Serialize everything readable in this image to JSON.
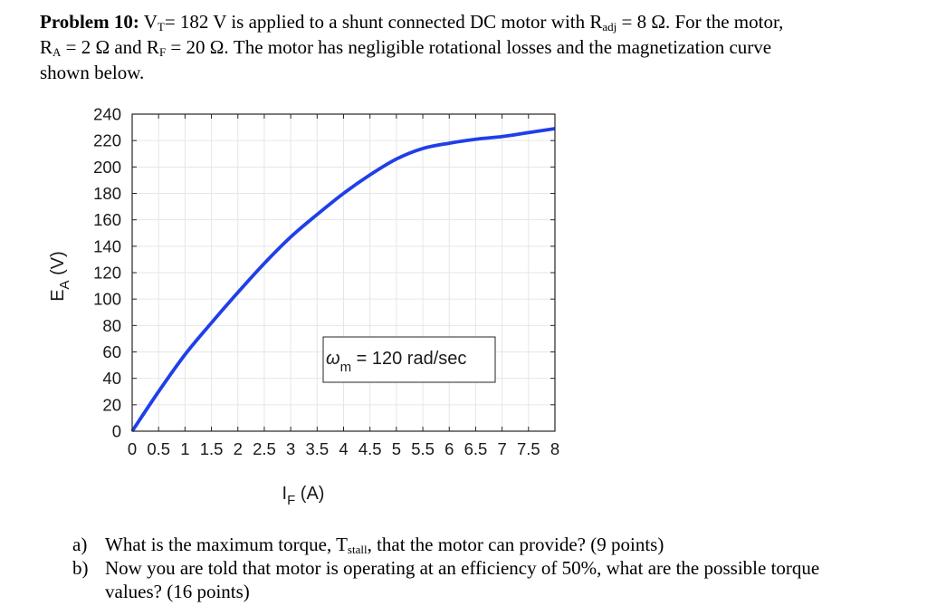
{
  "problem": {
    "label": "Problem 10:",
    "vt_sym": "V",
    "vt_sub": "T",
    "vt_text": "= 182 V is applied to a shunt connected DC motor with R",
    "radj_sub": "adj",
    "radj_text": "= 8 Ω.  For the motor,",
    "ra_sym": "R",
    "ra_sub": "A",
    "ra_text": "= 2 Ω and R",
    "rf_sub": "F",
    "rf_text": "= 20 Ω.  The motor has negligible rotational losses and the magnetization curve",
    "line3": "shown below."
  },
  "chart_data": {
    "type": "line",
    "xlabel_main": "I",
    "xlabel_sub": "F",
    "xlabel_unit": " (A)",
    "ylabel_main": "E",
    "ylabel_sub": "A",
    "ylabel_unit": " (V)",
    "xlim": [
      0,
      8
    ],
    "ylim": [
      0,
      240
    ],
    "xticks": [
      "0",
      "0.5",
      "1",
      "1.5",
      "2",
      "2.5",
      "3",
      "3.5",
      "4",
      "4.5",
      "5",
      "5.5",
      "6",
      "6.5",
      "7",
      "7.5",
      "8"
    ],
    "yticks": [
      "0",
      "20",
      "40",
      "60",
      "80",
      "100",
      "120",
      "140",
      "160",
      "180",
      "200",
      "220",
      "240"
    ],
    "grid": true,
    "annotation": {
      "symbol": "ω",
      "sub": "m",
      "text": " = 120 rad/sec"
    },
    "series": [
      {
        "color": "#1f3fe8",
        "x": [
          0,
          0.5,
          1,
          1.5,
          2,
          2.5,
          3,
          3.5,
          4,
          4.5,
          5,
          5.5,
          6,
          6.5,
          7,
          7.5,
          8
        ],
        "y": [
          0,
          30,
          58,
          82,
          105,
          127,
          147,
          164,
          180,
          194,
          206,
          214,
          218,
          221,
          223,
          226,
          229
        ]
      }
    ]
  },
  "questions": [
    {
      "letter": "a)",
      "text_pre": "What is the maximum torque, T",
      "sub": "stall",
      "text_post": ", that the motor can provide? (9 points)"
    },
    {
      "letter": "b)",
      "text_pre": "Now you are told that motor is operating at an efficiency of 50%, what are the possible torque values? (16 points)",
      "sub": "",
      "text_post": ""
    }
  ]
}
